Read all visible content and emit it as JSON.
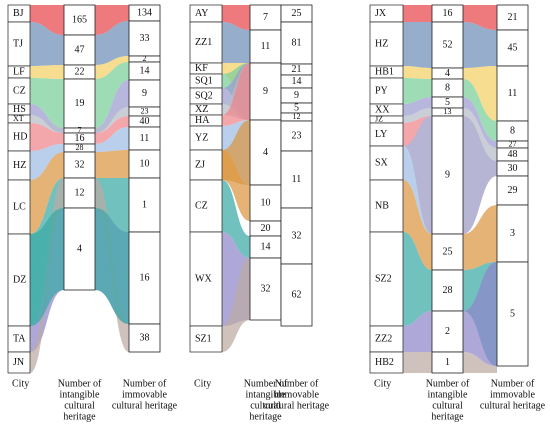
{
  "chart_data": {
    "type": "sankey",
    "axis_labels": {
      "city": "City",
      "intangible": [
        "Number of",
        "intangible",
        "cultural",
        "heritage"
      ],
      "immovable": [
        "Number of",
        "immovable",
        "cultural heritage"
      ]
    },
    "panels": [
      {
        "cities": [
          {
            "name": "BJ",
            "color": "#e8474b"
          },
          {
            "name": "TJ",
            "color": "#6e8db8"
          },
          {
            "name": "LF",
            "color": "#f2d064"
          },
          {
            "name": "CZ",
            "color": "#79cf9a"
          },
          {
            "name": "HS",
            "color": "#9b9bd1"
          },
          {
            "name": "XT",
            "color": "#b5bcc8"
          },
          {
            "name": "HD",
            "color": "#f0858a"
          },
          {
            "name": "HZ",
            "color": "#9ebde3"
          },
          {
            "name": "LC",
            "color": "#d99540"
          },
          {
            "name": "DZ",
            "color": "#3aa9a5"
          },
          {
            "name": "TA",
            "color": "#8f86cb"
          },
          {
            "name": "JN",
            "color": "#bdaaa4"
          }
        ],
        "intangible": [
          165,
          47,
          22,
          19,
          7,
          16,
          28,
          32,
          12,
          4
        ],
        "immovable": [
          134,
          33,
          2,
          14,
          9,
          23,
          40,
          11,
          10,
          1,
          16,
          38
        ]
      },
      {
        "cities": [
          {
            "name": "AY",
            "color": "#e8474b"
          },
          {
            "name": "ZZ1",
            "color": "#6e8db8"
          },
          {
            "name": "KF",
            "color": "#f2d064"
          },
          {
            "name": "SQ1",
            "color": "#79cf9a"
          },
          {
            "name": "SQ2",
            "color": "#9b9bd1"
          },
          {
            "name": "XZ",
            "color": "#b5bcc8"
          },
          {
            "name": "HA",
            "color": "#f0858a"
          },
          {
            "name": "YZ",
            "color": "#9ebde3"
          },
          {
            "name": "ZJ",
            "color": "#d99540"
          },
          {
            "name": "CZ",
            "color": "#3aa9a5"
          },
          {
            "name": "WX",
            "color": "#8f86cb"
          },
          {
            "name": "SZ1",
            "color": "#bdaaa4"
          }
        ],
        "intangible": [
          7,
          11,
          9,
          4,
          10,
          20,
          14,
          32
        ],
        "immovable": [
          25,
          81,
          21,
          14,
          9,
          5,
          12,
          23,
          11,
          32,
          62
        ]
      },
      {
        "cities": [
          {
            "name": "JX",
            "color": "#e8474b"
          },
          {
            "name": "HZ",
            "color": "#6e8db8"
          },
          {
            "name": "HB1",
            "color": "#f2d064"
          },
          {
            "name": "PY",
            "color": "#79cf9a"
          },
          {
            "name": "XX",
            "color": "#9b9bd1"
          },
          {
            "name": "JZ",
            "color": "#b5bcc8"
          },
          {
            "name": "LY",
            "color": "#f0858a"
          },
          {
            "name": "SX",
            "color": "#9ebde3"
          },
          {
            "name": "NB",
            "color": "#d99540"
          },
          {
            "name": "SZ2",
            "color": "#3aa9a5"
          },
          {
            "name": "ZZ2",
            "color": "#8f86cb"
          },
          {
            "name": "HB2",
            "color": "#bdaaa4"
          }
        ],
        "intangible": [
          16,
          52,
          4,
          8,
          5,
          13,
          9,
          25,
          28,
          2,
          1
        ],
        "immovable": [
          21,
          45,
          11,
          8,
          27,
          48,
          30,
          29,
          3,
          5
        ]
      }
    ]
  }
}
